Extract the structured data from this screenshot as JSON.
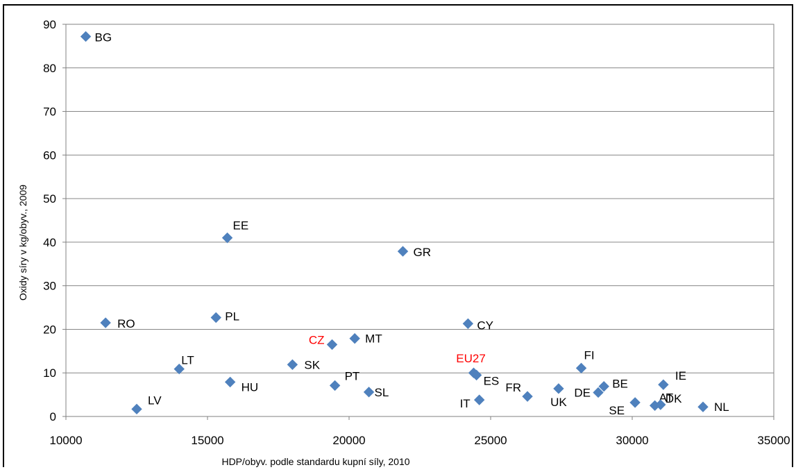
{
  "chart_data": {
    "type": "scatter",
    "title": "",
    "xlabel": "HDP/obyv. podle standardu kupní síly, 2010",
    "ylabel": "Oxidy síry v kg/obyv., 2009",
    "xlim": [
      10000,
      35000
    ],
    "ylim": [
      0,
      90
    ],
    "xticks": [
      "10000",
      "15000",
      "20000",
      "25000",
      "30000",
      "35000"
    ],
    "yticks": [
      "0",
      "10",
      "20",
      "30",
      "40",
      "50",
      "60",
      "70",
      "80",
      "90"
    ],
    "grid": "horizontal",
    "marker": "diamond",
    "marker_color": "#4f81bd",
    "label_color": "#000000",
    "highlight_color": "#ff0000",
    "points": [
      {
        "label": "BG",
        "x": 10700,
        "y": 87.2
      },
      {
        "label": "RO",
        "x": 11400,
        "y": 21.5
      },
      {
        "label": "LV",
        "x": 12500,
        "y": 1.7
      },
      {
        "label": "LT",
        "x": 14000,
        "y": 10.9
      },
      {
        "label": "PL",
        "x": 15300,
        "y": 22.7
      },
      {
        "label": "EE",
        "x": 15700,
        "y": 41.0
      },
      {
        "label": "HU",
        "x": 15800,
        "y": 7.9
      },
      {
        "label": "SK",
        "x": 18000,
        "y": 11.9
      },
      {
        "label": "CZ",
        "x": 19400,
        "y": 16.5,
        "highlight": true
      },
      {
        "label": "PT",
        "x": 19500,
        "y": 7.1
      },
      {
        "label": "MT",
        "x": 20200,
        "y": 17.9
      },
      {
        "label": "SL",
        "x": 20700,
        "y": 5.6
      },
      {
        "label": "GR",
        "x": 21900,
        "y": 37.9
      },
      {
        "label": "CY",
        "x": 24200,
        "y": 21.3
      },
      {
        "label": "EU27",
        "x": 24400,
        "y": 10.0,
        "highlight": true
      },
      {
        "label": "ES",
        "x": 24500,
        "y": 9.5
      },
      {
        "label": "IT",
        "x": 24600,
        "y": 3.8
      },
      {
        "label": "FR",
        "x": 26300,
        "y": 4.6
      },
      {
        "label": "UK",
        "x": 27400,
        "y": 6.4
      },
      {
        "label": "FI",
        "x": 28200,
        "y": 11.1
      },
      {
        "label": "DE",
        "x": 28800,
        "y": 5.5
      },
      {
        "label": "BE",
        "x": 29000,
        "y": 6.9
      },
      {
        "label": "SE",
        "x": 30100,
        "y": 3.2
      },
      {
        "label": "AT",
        "x": 30800,
        "y": 2.5
      },
      {
        "label": "DK",
        "x": 31000,
        "y": 2.7
      },
      {
        "label": "IE",
        "x": 31100,
        "y": 7.3
      },
      {
        "label": "NL",
        "x": 32500,
        "y": 2.2
      }
    ]
  }
}
